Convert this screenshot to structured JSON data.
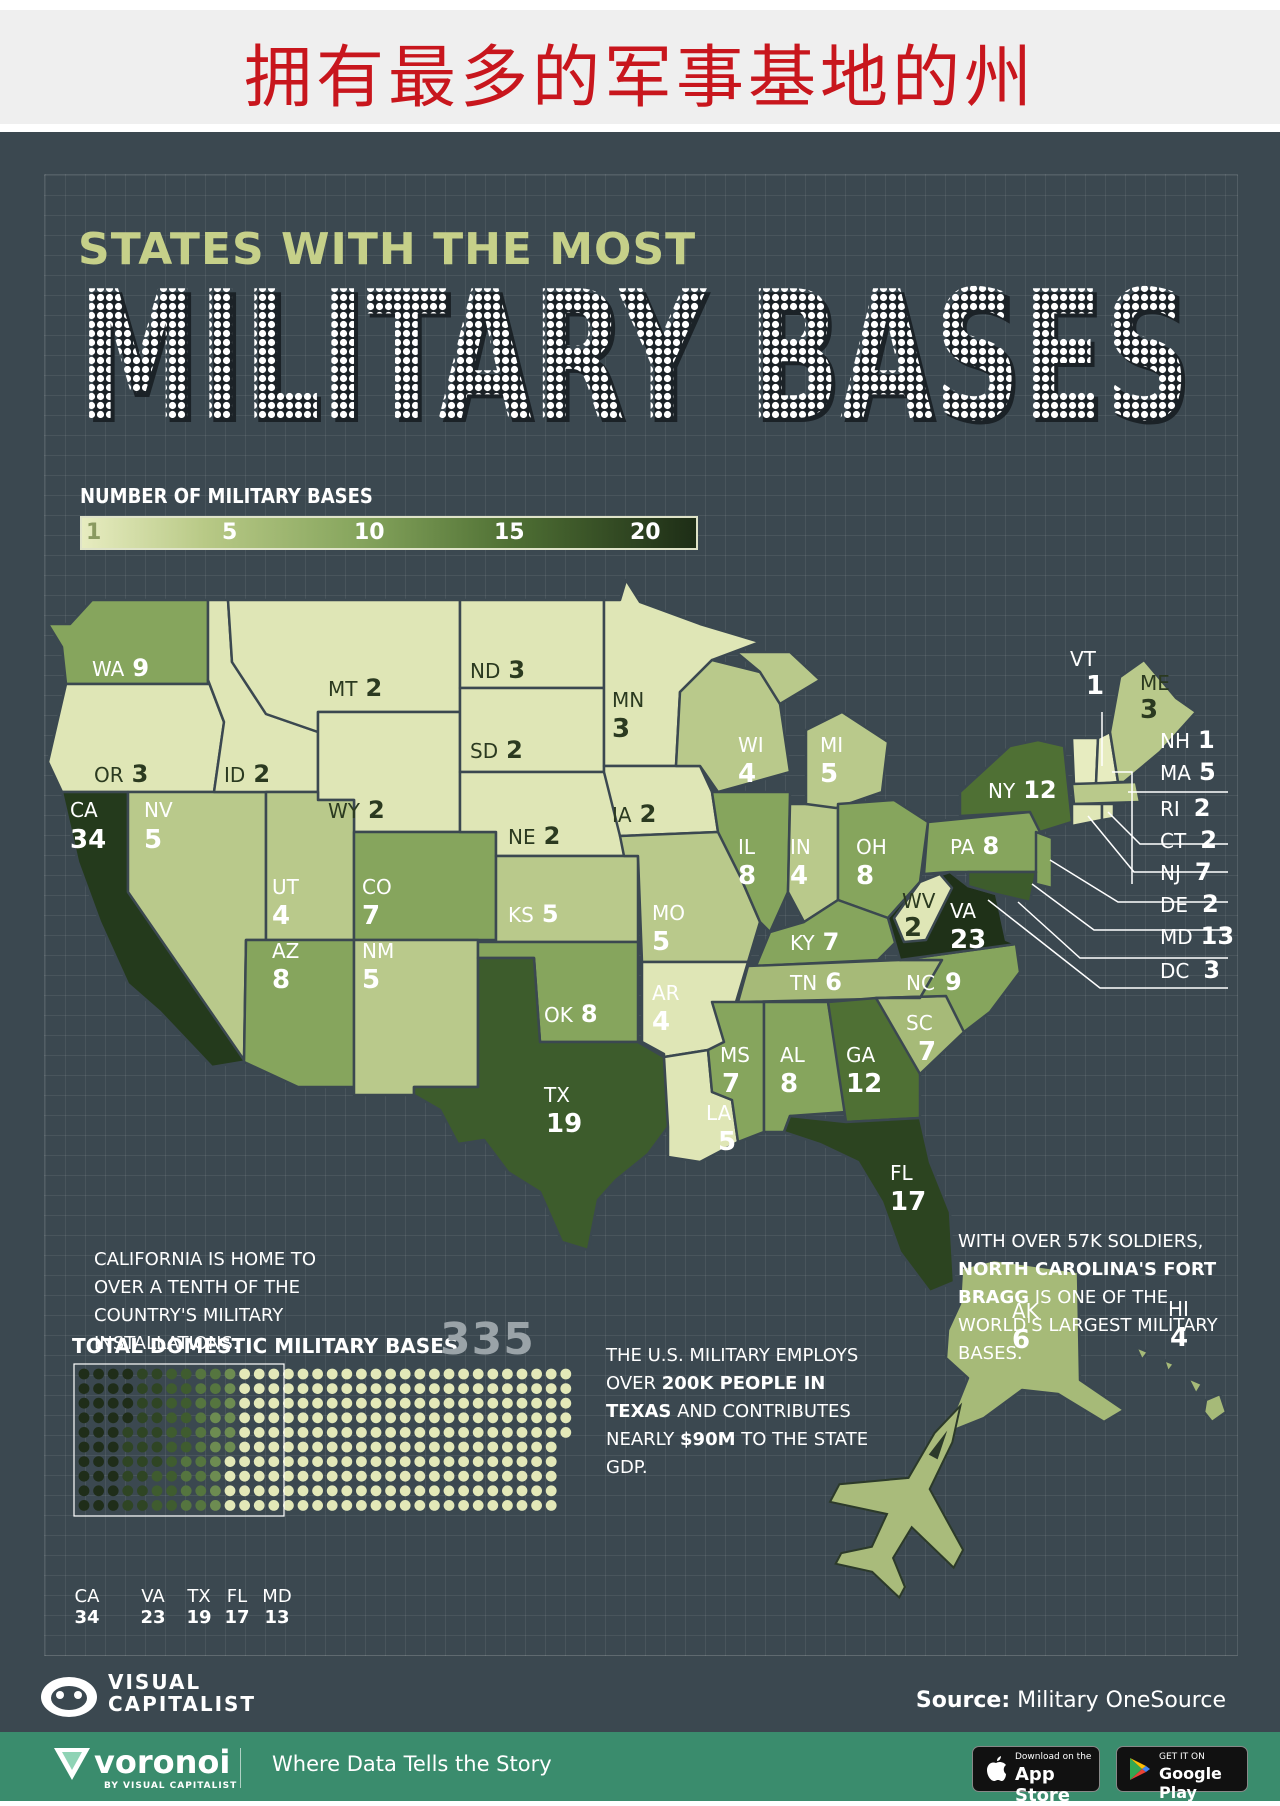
{
  "banner": {
    "title": "拥有最多的军事基地的州"
  },
  "header": {
    "kicker": "STATES WITH THE MOST",
    "title": "MILITARY BASES"
  },
  "legend": {
    "title": "NUMBER OF MILITARY BASES",
    "ticks": [
      "1",
      "5",
      "10",
      "15",
      "20"
    ]
  },
  "states": [
    {
      "abbr": "WA",
      "value": "9"
    },
    {
      "abbr": "OR",
      "value": "3"
    },
    {
      "abbr": "CA",
      "value": "34"
    },
    {
      "abbr": "ID",
      "value": "2"
    },
    {
      "abbr": "NV",
      "value": "5"
    },
    {
      "abbr": "MT",
      "value": "2"
    },
    {
      "abbr": "WY",
      "value": "2"
    },
    {
      "abbr": "UT",
      "value": "4"
    },
    {
      "abbr": "AZ",
      "value": "8"
    },
    {
      "abbr": "CO",
      "value": "7"
    },
    {
      "abbr": "NM",
      "value": "5"
    },
    {
      "abbr": "ND",
      "value": "3"
    },
    {
      "abbr": "SD",
      "value": "2"
    },
    {
      "abbr": "NE",
      "value": "2"
    },
    {
      "abbr": "KS",
      "value": "5"
    },
    {
      "abbr": "OK",
      "value": "8"
    },
    {
      "abbr": "TX",
      "value": "19"
    },
    {
      "abbr": "MN",
      "value": "3"
    },
    {
      "abbr": "IA",
      "value": "2"
    },
    {
      "abbr": "MO",
      "value": "5"
    },
    {
      "abbr": "AR",
      "value": "4"
    },
    {
      "abbr": "LA",
      "value": "5"
    },
    {
      "abbr": "WI",
      "value": "4"
    },
    {
      "abbr": "IL",
      "value": "8"
    },
    {
      "abbr": "MI",
      "value": "5"
    },
    {
      "abbr": "IN",
      "value": "4"
    },
    {
      "abbr": "OH",
      "value": "8"
    },
    {
      "abbr": "KY",
      "value": "7"
    },
    {
      "abbr": "TN",
      "value": "6"
    },
    {
      "abbr": "MS",
      "value": "7"
    },
    {
      "abbr": "AL",
      "value": "8"
    },
    {
      "abbr": "GA",
      "value": "12"
    },
    {
      "abbr": "FL",
      "value": "17"
    },
    {
      "abbr": "SC",
      "value": "7"
    },
    {
      "abbr": "NC",
      "value": "9"
    },
    {
      "abbr": "VA",
      "value": "23"
    },
    {
      "abbr": "WV",
      "value": "2"
    },
    {
      "abbr": "PA",
      "value": "8"
    },
    {
      "abbr": "NY",
      "value": "12"
    },
    {
      "abbr": "VT",
      "value": "1"
    },
    {
      "abbr": "ME",
      "value": "3"
    },
    {
      "abbr": "NH",
      "value": "1"
    },
    {
      "abbr": "MA",
      "value": "5"
    },
    {
      "abbr": "RI",
      "value": "2"
    },
    {
      "abbr": "CT",
      "value": "2"
    },
    {
      "abbr": "NJ",
      "value": "7"
    },
    {
      "abbr": "DE",
      "value": "2"
    },
    {
      "abbr": "MD",
      "value": "13"
    },
    {
      "abbr": "DC",
      "value": "3"
    },
    {
      "abbr": "AK",
      "value": "6"
    },
    {
      "abbr": "HI",
      "value": "4"
    }
  ],
  "notes": {
    "california": "CALIFORNIA IS HOME TO OVER A TENTH OF THE COUNTRY'S MILITARY INSTALLATIONS.",
    "nc_pre": "WITH OVER 57K SOLDIERS,",
    "nc_bold": "NORTH CAROLINA'S FORT BRAGG",
    "nc_post": "IS ONE OF THE WORLD'S LARGEST MILITARY BASES.",
    "tx_1": "THE U.S. MILITARY EMPLOYS OVER",
    "tx_bold1": "200K PEOPLE IN TEXAS",
    "tx_2": "AND CONTRIBUTES NEARLY",
    "tx_bold2": "$90M",
    "tx_3": "TO THE STATE GDP."
  },
  "total": {
    "title": "TOTAL DOMESTIC MILITARY BASES",
    "value": "335",
    "top_states": [
      {
        "abbr": "CA",
        "value": "34"
      },
      {
        "abbr": "VA",
        "value": "23"
      },
      {
        "abbr": "TX",
        "value": "19"
      },
      {
        "abbr": "FL",
        "value": "17"
      },
      {
        "abbr": "MD",
        "value": "13"
      }
    ]
  },
  "brand": {
    "line1": "VISUAL",
    "line2": "CAPITALIST"
  },
  "source": {
    "label": "Source:",
    "text": "Military OneSource"
  },
  "footer": {
    "name": "voronoi",
    "sub": "BY VISUAL CAPITALIST",
    "tagline": "Where Data Tells the Story",
    "appstore_small": "Download on the",
    "appstore_big": "App Store",
    "gplay_small": "GET IT ON",
    "gplay_big": "Google Play"
  },
  "colors": {
    "background": "#3b4850",
    "accent": "#c6d089",
    "banner_text": "#c8161d",
    "footer": "#3a8c6d"
  }
}
